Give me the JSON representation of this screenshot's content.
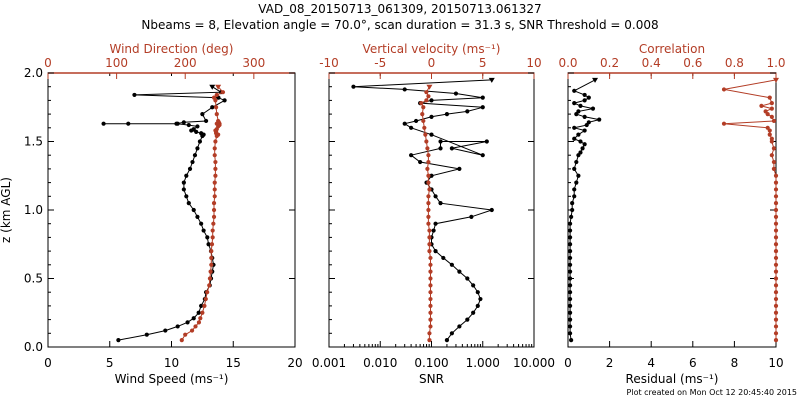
{
  "title_line1": "VAD_08_20150713_061309, 20150713.061327",
  "title_line2": "Nbeams = 8, Elevation angle = 70.0°, scan duration = 31.3 s, SNR Threshold = 0.008",
  "footer": "Plot created on Mon Oct 12 20:45:40 2015",
  "colors": {
    "primary": "#000000",
    "secondary": "#b33d26"
  },
  "chart_data": [
    {
      "type": "line",
      "y": {
        "label": "z (km AGL)",
        "lim": [
          0.0,
          2.0
        ],
        "ticks": [
          "0.0",
          "0.5",
          "1.0",
          "1.5",
          "2.0"
        ]
      },
      "bottom_axis": {
        "label": "Wind Speed (ms⁻¹)",
        "lim": [
          0,
          20
        ],
        "ticks": [
          "0",
          "5",
          "10",
          "15",
          "20"
        ]
      },
      "top_axis": {
        "label": "Wind Direction (deg)",
        "lim": [
          0,
          360
        ],
        "ticks": [
          "0",
          "100",
          "200",
          "300"
        ]
      },
      "series": [
        {
          "name": "Wind Speed",
          "axis": "bottom",
          "color": "#000000",
          "x": [
            5.7,
            8.0,
            9.5,
            10.5,
            11.3,
            11.8,
            12.2,
            12.4,
            12.7,
            12.8,
            13.1,
            13.2,
            13.3,
            13.4,
            13.3,
            13.2,
            13.0,
            12.9,
            12.6,
            12.4,
            12.1,
            11.8,
            11.4,
            11.2,
            11.0,
            11.0,
            11.2,
            11.5,
            11.7,
            11.9,
            12.1,
            12.3,
            12.5,
            12.6,
            12.4,
            12.0,
            11.6,
            11.8,
            12.1,
            11.4,
            10.5,
            6.5,
            4.5,
            10.4,
            11.0,
            12.8,
            12.5,
            13.3,
            14.3,
            13.8,
            7.0,
            14.0,
            13.3
          ],
          "y": [
            0.05,
            0.09,
            0.12,
            0.15,
            0.18,
            0.21,
            0.25,
            0.3,
            0.35,
            0.4,
            0.45,
            0.5,
            0.55,
            0.6,
            0.65,
            0.7,
            0.75,
            0.8,
            0.85,
            0.9,
            0.95,
            1.0,
            1.05,
            1.1,
            1.15,
            1.2,
            1.25,
            1.3,
            1.35,
            1.4,
            1.45,
            1.5,
            1.54,
            1.55,
            1.56,
            1.57,
            1.58,
            1.59,
            1.61,
            1.62,
            1.63,
            1.63,
            1.63,
            1.63,
            1.64,
            1.65,
            1.7,
            1.75,
            1.8,
            1.82,
            1.84,
            1.86,
            1.9
          ]
        },
        {
          "name": "Wind Direction",
          "axis": "top",
          "color": "#b33d26",
          "x": [
            195,
            200,
            210,
            215,
            220,
            222,
            225,
            228,
            230,
            232,
            235,
            236,
            237,
            238,
            238,
            238,
            239,
            240,
            240,
            241,
            242,
            242,
            242,
            243,
            243,
            243,
            244,
            244,
            244,
            243,
            243,
            244,
            246,
            248,
            245,
            245,
            244,
            246,
            248,
            250,
            248,
            246,
            248,
            250,
            249,
            248,
            246,
            245,
            244,
            242,
            246,
            255,
            248
          ],
          "y": [
            0.05,
            0.09,
            0.12,
            0.15,
            0.18,
            0.21,
            0.25,
            0.3,
            0.35,
            0.4,
            0.45,
            0.5,
            0.55,
            0.6,
            0.65,
            0.7,
            0.75,
            0.8,
            0.85,
            0.9,
            0.95,
            1.0,
            1.05,
            1.1,
            1.15,
            1.2,
            1.25,
            1.3,
            1.35,
            1.4,
            1.45,
            1.5,
            1.54,
            1.55,
            1.56,
            1.57,
            1.58,
            1.59,
            1.61,
            1.62,
            1.63,
            1.63,
            1.63,
            1.63,
            1.64,
            1.65,
            1.7,
            1.75,
            1.8,
            1.82,
            1.84,
            1.86,
            1.9
          ]
        }
      ]
    },
    {
      "type": "line",
      "y": {
        "label": "",
        "lim": [
          0.0,
          2.0
        ]
      },
      "bottom_axis": {
        "label": "SNR",
        "scale": "log",
        "lim": [
          0.001,
          10.0
        ],
        "ticks": [
          "0.001",
          "0.010",
          "0.100",
          "1.000",
          "10.000"
        ]
      },
      "top_axis": {
        "label": "Vertical velocity (ms⁻¹)",
        "lim": [
          -10,
          10
        ],
        "ticks": [
          "-10",
          "-5",
          "0",
          "5",
          "10"
        ]
      },
      "series": [
        {
          "name": "SNR",
          "axis": "bottom",
          "color": "#000000",
          "x": [
            0.2,
            0.25,
            0.35,
            0.5,
            0.65,
            0.8,
            0.9,
            0.8,
            0.65,
            0.5,
            0.35,
            0.25,
            0.17,
            0.12,
            0.1,
            0.1,
            0.11,
            0.12,
            0.6,
            1.5,
            0.15,
            0.12,
            0.1,
            0.08,
            0.1,
            0.35,
            0.06,
            0.04,
            0.15,
            0.15,
            1.2,
            0.25,
            1.0,
            0.1,
            0.04,
            0.03,
            0.05,
            0.1,
            0.2,
            0.5,
            1.0,
            0.06,
            0.1,
            1.0,
            0.3,
            0.03,
            0.003,
            1.5
          ],
          "y": [
            0.05,
            0.1,
            0.15,
            0.2,
            0.25,
            0.3,
            0.35,
            0.4,
            0.45,
            0.5,
            0.55,
            0.6,
            0.65,
            0.7,
            0.75,
            0.8,
            0.85,
            0.9,
            0.95,
            1.0,
            1.05,
            1.1,
            1.15,
            1.2,
            1.25,
            1.3,
            1.35,
            1.4,
            1.45,
            1.5,
            1.5,
            1.45,
            1.4,
            1.55,
            1.6,
            1.63,
            1.65,
            1.68,
            1.7,
            1.72,
            1.75,
            1.78,
            1.8,
            1.82,
            1.85,
            1.88,
            1.9,
            1.95
          ]
        },
        {
          "name": "Vertical velocity",
          "axis": "top",
          "color": "#b33d26",
          "x": [
            -0.2,
            -0.2,
            -0.1,
            -0.1,
            -0.1,
            -0.1,
            -0.1,
            -0.1,
            -0.1,
            -0.1,
            -0.1,
            -0.1,
            -0.1,
            -0.2,
            -0.2,
            -0.2,
            -0.2,
            -0.3,
            -0.3,
            -0.3,
            -0.3,
            -0.3,
            -0.2,
            -0.3,
            -0.3,
            -0.4,
            -0.3,
            -0.3,
            -0.4,
            -0.5,
            -0.6,
            -0.7,
            -0.8,
            -0.9,
            -0.8,
            -1.0,
            -0.5,
            -0.3,
            -0.5,
            -0.2
          ],
          "y": [
            0.05,
            0.1,
            0.15,
            0.2,
            0.25,
            0.3,
            0.35,
            0.4,
            0.45,
            0.5,
            0.55,
            0.6,
            0.65,
            0.7,
            0.75,
            0.8,
            0.85,
            0.9,
            0.95,
            1.0,
            1.05,
            1.1,
            1.15,
            1.2,
            1.25,
            1.3,
            1.35,
            1.4,
            1.45,
            1.5,
            1.55,
            1.6,
            1.65,
            1.7,
            1.75,
            1.78,
            1.8,
            1.83,
            1.86,
            1.9
          ]
        }
      ]
    },
    {
      "type": "line",
      "y": {
        "label": "",
        "lim": [
          0.0,
          2.0
        ]
      },
      "bottom_axis": {
        "label": "Residual (ms⁻¹)",
        "lim": [
          0,
          10
        ],
        "ticks": [
          "0",
          "2",
          "4",
          "6",
          "8",
          "10"
        ]
      },
      "top_axis": {
        "label": "Correlation",
        "lim": [
          0.0,
          1.0
        ],
        "ticks": [
          "0.0",
          "0.2",
          "0.4",
          "0.6",
          "0.8",
          "1.0"
        ]
      },
      "series": [
        {
          "name": "Residual",
          "axis": "bottom",
          "color": "#000000",
          "x": [
            0.15,
            0.1,
            0.1,
            0.1,
            0.1,
            0.1,
            0.1,
            0.1,
            0.1,
            0.1,
            0.1,
            0.1,
            0.1,
            0.1,
            0.1,
            0.1,
            0.1,
            0.1,
            0.15,
            0.2,
            0.2,
            0.3,
            0.3,
            0.4,
            0.5,
            0.3,
            0.4,
            0.5,
            0.6,
            0.7,
            0.8,
            0.6,
            0.3,
            0.5,
            0.8,
            0.3,
            0.9,
            1.0,
            1.5,
            0.8,
            0.4,
            0.5,
            1.2,
            0.6,
            0.3,
            0.8,
            1.0,
            0.8,
            0.3,
            1.3
          ],
          "y": [
            0.05,
            0.1,
            0.15,
            0.2,
            0.25,
            0.3,
            0.35,
            0.4,
            0.45,
            0.5,
            0.55,
            0.6,
            0.65,
            0.7,
            0.75,
            0.8,
            0.85,
            0.9,
            0.95,
            1.0,
            1.05,
            1.1,
            1.15,
            1.2,
            1.25,
            1.3,
            1.35,
            1.4,
            1.42,
            1.45,
            1.48,
            1.5,
            1.52,
            1.55,
            1.58,
            1.6,
            1.62,
            1.64,
            1.66,
            1.68,
            1.7,
            1.72,
            1.74,
            1.76,
            1.78,
            1.8,
            1.82,
            1.84,
            1.87,
            1.95
          ]
        },
        {
          "name": "Correlation",
          "axis": "top",
          "color": "#b33d26",
          "x": [
            1.0,
            1.0,
            1.0,
            1.0,
            1.0,
            1.0,
            1.0,
            1.0,
            1.0,
            1.0,
            1.0,
            1.0,
            1.0,
            1.0,
            1.0,
            1.0,
            1.0,
            1.0,
            1.0,
            1.0,
            1.0,
            1.0,
            1.0,
            1.0,
            1.0,
            0.99,
            0.99,
            0.98,
            0.99,
            0.98,
            0.98,
            0.97,
            0.97,
            0.96,
            0.75,
            0.99,
            0.98,
            0.96,
            0.95,
            0.98,
            0.93,
            0.98,
            0.97,
            0.75,
            1.0
          ],
          "y": [
            0.05,
            0.1,
            0.15,
            0.2,
            0.25,
            0.3,
            0.35,
            0.4,
            0.45,
            0.5,
            0.55,
            0.6,
            0.65,
            0.7,
            0.75,
            0.8,
            0.85,
            0.9,
            0.95,
            1.0,
            1.05,
            1.1,
            1.15,
            1.2,
            1.25,
            1.3,
            1.35,
            1.4,
            1.45,
            1.5,
            1.52,
            1.55,
            1.58,
            1.6,
            1.63,
            1.65,
            1.68,
            1.7,
            1.72,
            1.74,
            1.76,
            1.78,
            1.82,
            1.88,
            1.95
          ]
        }
      ]
    }
  ]
}
